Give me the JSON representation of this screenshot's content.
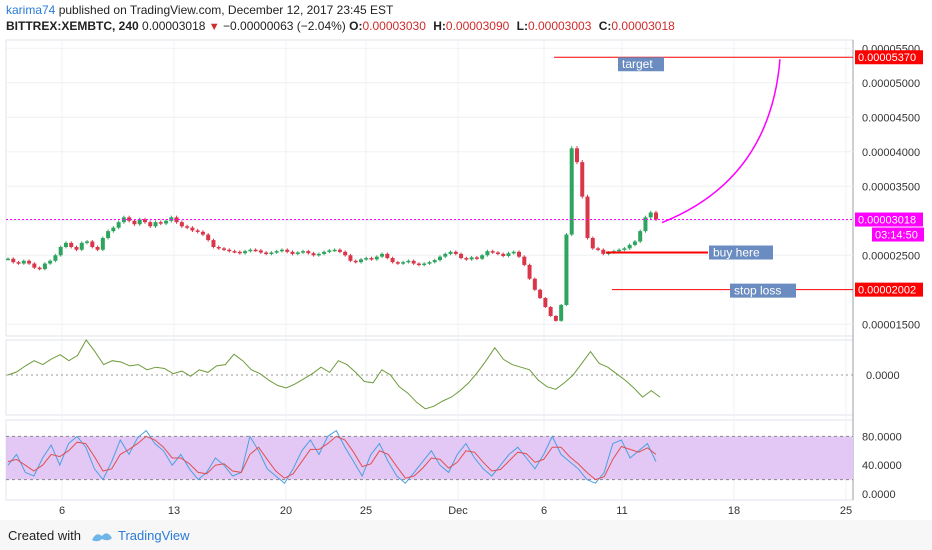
{
  "header": {
    "author": "karima74",
    "published": "published on TradingView.com, December 12, 2017 23:45 EST",
    "symbol": "BITTREX:XEMBTC, 240",
    "price": "0.00003018",
    "change_arrow": "▼",
    "change": "−0.00000063 (−2.04%)",
    "ohlc": {
      "o_label": "O:",
      "o": "0.00003030",
      "h_label": "H:",
      "h": "0.00003090",
      "l_label": "L:",
      "l": "0.00003003",
      "c_label": "C:",
      "c": "0.00003018"
    }
  },
  "footer": {
    "created": "Created with",
    "brand": "TradingView"
  },
  "colors": {
    "up": "#2ea55f",
    "down": "#d9364a",
    "magenta": "#ff00ff",
    "red_line": "#ff0000",
    "label_bg": "#6b8cc0",
    "stoch_fill": "#e3c8f5",
    "osc_line": "#6e9b3c",
    "k_line": "#4aa0e0",
    "d_line": "#e05050"
  },
  "chart_data": [
    {
      "type": "candlestick",
      "ylim": [
        1.33e-05,
        5.62e-05
      ],
      "y_ticks": [
        "0.00005500",
        "0.00005000",
        "0.00004500",
        "0.00004000",
        "0.00003500",
        "0.00003000",
        "0.00002500",
        "0.00001500"
      ],
      "y_tick_values": [
        5.5e-05,
        5e-05,
        4.5e-05,
        4e-05,
        3.5e-05,
        3e-05,
        2.5e-05,
        1.5e-05
      ],
      "x_ticks": [
        "6",
        "13",
        "20",
        "25",
        "Dec",
        "6",
        "11",
        "18",
        "25"
      ],
      "price_labels": [
        {
          "text": "0.00005370",
          "value": 5.37e-05,
          "style": "red"
        },
        {
          "text": "0.00003018",
          "value": 3.018e-05,
          "style": "magenta"
        },
        {
          "text": "03:14:50",
          "value": 2.84e-05,
          "style": "magenta"
        },
        {
          "text": "0.00002002",
          "value": 2.002e-05,
          "style": "red"
        }
      ],
      "annotations": [
        {
          "text": "target",
          "value": 5.37e-05
        },
        {
          "text": "buy here",
          "value": 2.54e-05
        },
        {
          "text": "stop loss",
          "value": 2.002e-05
        }
      ],
      "series": [
        {
          "values": [
            2.45e-05,
            2.4e-05,
            2.38e-05,
            2.42e-05,
            2.38e-05,
            2.32e-05,
            2.3e-05,
            2.38e-05,
            2.42e-05,
            2.5e-05,
            2.62e-05,
            2.68e-05,
            2.62e-05,
            2.58e-05,
            2.68e-05,
            2.7e-05,
            2.62e-05,
            2.58e-05,
            2.75e-05,
            2.85e-05,
            2.9e-05,
            2.98e-05,
            3.05e-05,
            3e-05,
            2.95e-05,
            3.02e-05,
            2.98e-05,
            2.92e-05,
            2.98e-05,
            2.96e-05,
            3e-05,
            3.05e-05,
            2.98e-05,
            2.92e-05,
            2.9e-05,
            2.86e-05,
            2.84e-05,
            2.8e-05,
            2.72e-05,
            2.62e-05,
            2.6e-05,
            2.58e-05,
            2.56e-05,
            2.55e-05,
            2.53e-05,
            2.56e-05,
            2.58e-05,
            2.57e-05,
            2.54e-05,
            2.52e-05,
            2.54e-05,
            2.56e-05,
            2.58e-05,
            2.55e-05,
            2.52e-05,
            2.54e-05,
            2.56e-05,
            2.53e-05,
            2.5e-05,
            2.52e-05,
            2.55e-05,
            2.57e-05,
            2.58e-05,
            2.55e-05,
            2.5e-05,
            2.42e-05,
            2.4e-05,
            2.44e-05,
            2.46e-05,
            2.44e-05,
            2.48e-05,
            2.52e-05,
            2.46e-05,
            2.4e-05,
            2.38e-05,
            2.4e-05,
            2.42e-05,
            2.38e-05,
            2.36e-05,
            2.38e-05,
            2.4e-05,
            2.43e-05,
            2.48e-05,
            2.52e-05,
            2.55e-05,
            2.52e-05,
            2.46e-05,
            2.44e-05,
            2.47e-05,
            2.45e-05,
            2.5e-05,
            2.56e-05,
            2.54e-05,
            2.52e-05,
            2.49e-05,
            2.53e-05,
            2.55e-05,
            2.48e-05,
            2.36e-05,
            2.16e-05,
            2e-05,
            1.88e-05,
            1.75e-05,
            1.62e-05,
            1.55e-05,
            1.78e-05,
            2.8e-05,
            4.05e-05,
            3.85e-05,
            3.35e-05,
            2.75e-05,
            2.6e-05,
            2.58e-05,
            2.52e-05,
            2.54e-05,
            2.56e-05,
            2.58e-05,
            2.6e-05,
            2.65e-05,
            2.7e-05,
            2.85e-05,
            3.05e-05,
            3.12e-05,
            3.02e-05
          ]
        }
      ]
    },
    {
      "type": "line",
      "y_ticks": [
        "0.0000"
      ],
      "series": [
        {
          "values": [
            0,
            0.12,
            0.35,
            0.55,
            0.4,
            0.62,
            0.78,
            0.55,
            0.75,
            1.35,
            0.9,
            0.4,
            0.55,
            0.5,
            0.35,
            0.4,
            0.2,
            0.3,
            0.25,
            0.05,
            0.15,
            -0.05,
            0.2,
            0.1,
            0.35,
            0.4,
            0.8,
            0.55,
            0.2,
            0.05,
            -0.2,
            -0.4,
            -0.5,
            -0.35,
            -0.15,
            0.05,
            0.3,
            0.1,
            0.55,
            0.4,
            0.1,
            -0.25,
            -0.3,
            0.2,
            0.0,
            -0.45,
            -0.7,
            -1.05,
            -1.3,
            -1.2,
            -1.0,
            -0.85,
            -0.6,
            -0.3,
            0.1,
            0.55,
            1.05,
            0.6,
            0.4,
            0.3,
            0.2,
            -0.2,
            -0.45,
            -0.55,
            -0.3,
            0.0,
            0.45,
            0.9,
            0.45,
            0.3,
            0.05,
            -0.2,
            -0.5,
            -0.85,
            -0.6,
            -0.85
          ]
        }
      ]
    },
    {
      "type": "line",
      "ylim": [
        0,
        100
      ],
      "y_ticks": [
        "80.0000",
        "40.0000",
        "0.0000"
      ],
      "y_tick_values": [
        80,
        40,
        0
      ],
      "series": [
        {
          "values": [
            40,
            55,
            30,
            25,
            50,
            68,
            40,
            70,
            80,
            65,
            35,
            20,
            45,
            75,
            55,
            78,
            88,
            70,
            60,
            40,
            55,
            35,
            20,
            30,
            50,
            40,
            25,
            30,
            80,
            60,
            35,
            25,
            15,
            35,
            60,
            75,
            55,
            80,
            88,
            65,
            45,
            25,
            55,
            70,
            45,
            25,
            15,
            30,
            45,
            60,
            40,
            30,
            55,
            70,
            50,
            35,
            25,
            40,
            55,
            65,
            50,
            35,
            55,
            80,
            55,
            45,
            35,
            20,
            15,
            30,
            70,
            75,
            50,
            60,
            70,
            45
          ]
        },
        {
          "values": [
            45,
            48,
            40,
            32,
            40,
            55,
            52,
            60,
            72,
            70,
            52,
            32,
            35,
            55,
            62,
            70,
            80,
            75,
            65,
            50,
            50,
            42,
            30,
            28,
            40,
            42,
            32,
            30,
            55,
            65,
            48,
            32,
            22,
            28,
            45,
            62,
            62,
            70,
            80,
            75,
            58,
            38,
            42,
            60,
            55,
            38,
            22,
            25,
            36,
            50,
            48,
            36,
            44,
            60,
            58,
            44,
            32,
            34,
            46,
            58,
            56,
            44,
            48,
            65,
            65,
            52,
            42,
            30,
            20,
            24,
            48,
            66,
            62,
            58,
            64,
            55
          ]
        }
      ]
    }
  ]
}
